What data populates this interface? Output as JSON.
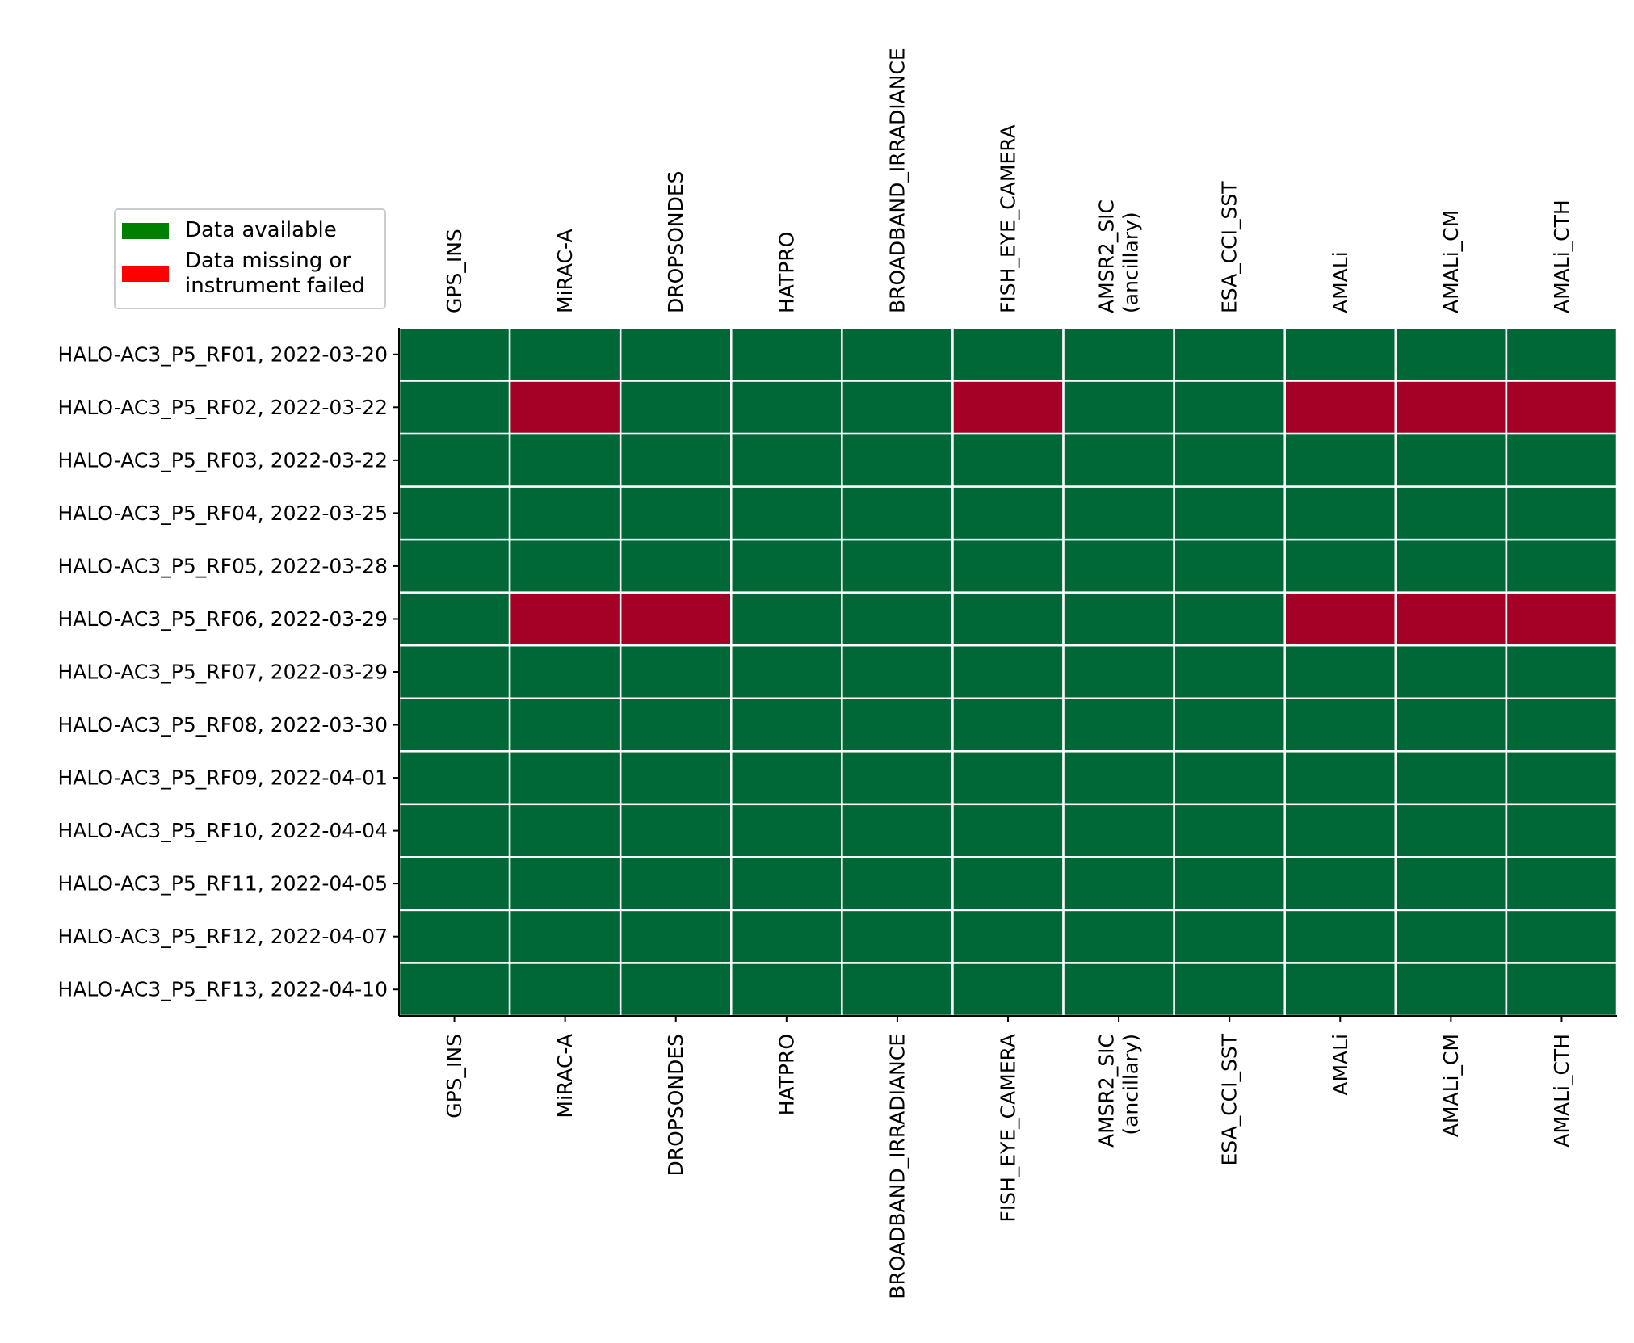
{
  "chart_data": {
    "type": "heatmap",
    "columns": [
      [
        "GPS_INS"
      ],
      [
        "MiRAC-A"
      ],
      [
        "DROPSONDES"
      ],
      [
        "HATPRO"
      ],
      [
        "BROADBAND_IRRADIANCE"
      ],
      [
        "FISH_EYE_CAMERA"
      ],
      [
        "AMSR2_SIC",
        "(ancillary)"
      ],
      [
        "ESA_CCI_SST"
      ],
      [
        "AMALi"
      ],
      [
        "AMALi_CM"
      ],
      [
        "AMALi_CTH"
      ]
    ],
    "rows": [
      "HALO-AC3_P5_RF01, 2022-03-20",
      "HALO-AC3_P5_RF02, 2022-03-22",
      "HALO-AC3_P5_RF03, 2022-03-22",
      "HALO-AC3_P5_RF04, 2022-03-25",
      "HALO-AC3_P5_RF05, 2022-03-28",
      "HALO-AC3_P5_RF06, 2022-03-29",
      "HALO-AC3_P5_RF07, 2022-03-29",
      "HALO-AC3_P5_RF08, 2022-03-30",
      "HALO-AC3_P5_RF09, 2022-04-01",
      "HALO-AC3_P5_RF10, 2022-04-04",
      "HALO-AC3_P5_RF11, 2022-04-05",
      "HALO-AC3_P5_RF12, 2022-04-07",
      "HALO-AC3_P5_RF13, 2022-04-10"
    ],
    "values": [
      [
        1,
        1,
        1,
        1,
        1,
        1,
        1,
        1,
        1,
        1,
        1
      ],
      [
        1,
        0,
        1,
        1,
        1,
        0,
        1,
        1,
        0,
        0,
        0
      ],
      [
        1,
        1,
        1,
        1,
        1,
        1,
        1,
        1,
        1,
        1,
        1
      ],
      [
        1,
        1,
        1,
        1,
        1,
        1,
        1,
        1,
        1,
        1,
        1
      ],
      [
        1,
        1,
        1,
        1,
        1,
        1,
        1,
        1,
        1,
        1,
        1
      ],
      [
        1,
        0,
        0,
        1,
        1,
        1,
        1,
        1,
        0,
        0,
        0
      ],
      [
        1,
        1,
        1,
        1,
        1,
        1,
        1,
        1,
        1,
        1,
        1
      ],
      [
        1,
        1,
        1,
        1,
        1,
        1,
        1,
        1,
        1,
        1,
        1
      ],
      [
        1,
        1,
        1,
        1,
        1,
        1,
        1,
        1,
        1,
        1,
        1
      ],
      [
        1,
        1,
        1,
        1,
        1,
        1,
        1,
        1,
        1,
        1,
        1
      ],
      [
        1,
        1,
        1,
        1,
        1,
        1,
        1,
        1,
        1,
        1,
        1
      ],
      [
        1,
        1,
        1,
        1,
        1,
        1,
        1,
        1,
        1,
        1,
        1
      ],
      [
        1,
        1,
        1,
        1,
        1,
        1,
        1,
        1,
        1,
        1,
        1
      ]
    ],
    "cell_colors": {
      "1": "#006837",
      "0": "#a50026"
    },
    "grid_line_color": "#ffffff",
    "column_labels_top_and_bottom": true,
    "legend": {
      "placement": "upper-left",
      "items": [
        {
          "label": "Data available",
          "color": "#008000"
        },
        {
          "label": "Data missing or\ninstrument failed",
          "color": "#ff0000"
        }
      ]
    }
  }
}
